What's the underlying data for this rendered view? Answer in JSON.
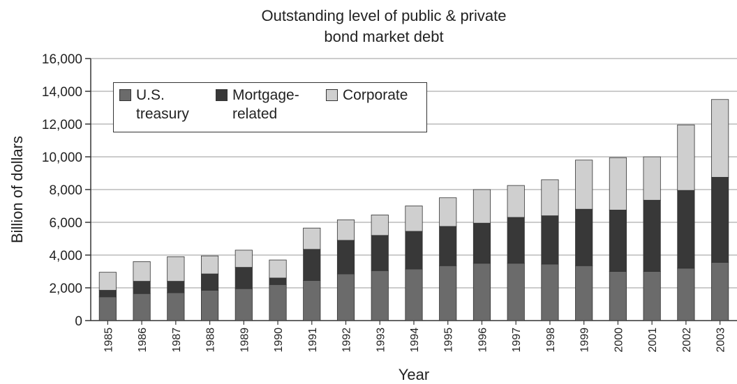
{
  "chart_data": {
    "type": "bar",
    "stacked": true,
    "title": [
      "Outstanding level of public & private",
      "bond market debt"
    ],
    "xlabel": "Year",
    "ylabel": "Billion of dollars",
    "ylim": [
      0,
      16000
    ],
    "yticks": [
      "0",
      "2,000",
      "4,000",
      "6,000",
      "8,000",
      "10,000",
      "12,000",
      "14,000",
      "16,000"
    ],
    "grid": true,
    "legend_position": "top-left",
    "categories": [
      "1985",
      "1986",
      "1987",
      "1988",
      "1989",
      "1990",
      "1991",
      "1992",
      "1993",
      "1994",
      "1995",
      "1996",
      "1997",
      "1998",
      "1999",
      "2000",
      "2001",
      "2002",
      "2003"
    ],
    "series": [
      {
        "name": "U.S. treasury",
        "legend_label": "U.S.\ntreasury",
        "color": "#6b6b6b",
        "values": [
          1450,
          1650,
          1700,
          1850,
          1950,
          2200,
          2450,
          2850,
          3050,
          3150,
          3350,
          3500,
          3500,
          3450,
          3350,
          3000,
          3000,
          3200,
          3550
        ]
      },
      {
        "name": "Mortgage-related",
        "legend_label": "Mortgage-\nrelated",
        "color": "#383838",
        "values": [
          400,
          750,
          700,
          1000,
          1300,
          400,
          1900,
          2050,
          2150,
          2300,
          2400,
          2450,
          2800,
          2950,
          3450,
          3750,
          4350,
          4750,
          5200
        ]
      },
      {
        "name": "Corporate",
        "legend_label": "Corporate",
        "color": "#cfcfcf",
        "values": [
          1100,
          1200,
          1500,
          1100,
          1050,
          1100,
          1300,
          1250,
          1250,
          1550,
          1750,
          2050,
          1950,
          2200,
          3000,
          3200,
          2650,
          4000,
          4750
        ]
      }
    ]
  }
}
